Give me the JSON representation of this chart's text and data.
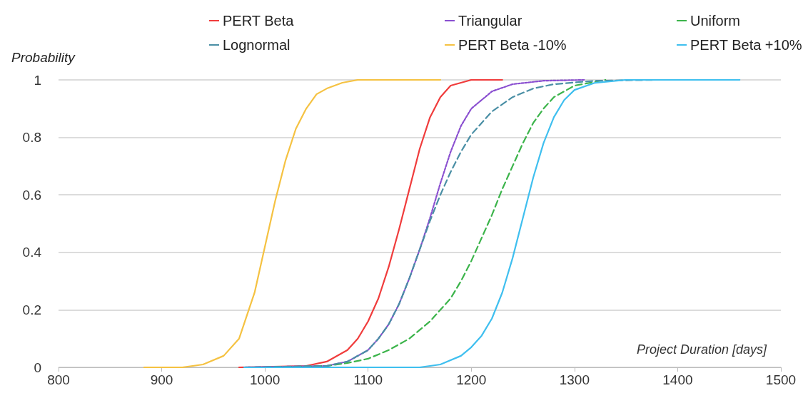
{
  "chart_data": {
    "type": "line",
    "xlabel": "Project Duration [days]",
    "ylabel": "Probability",
    "xlim": [
      800,
      1500
    ],
    "xticks": [
      800,
      900,
      1000,
      1100,
      1200,
      1300,
      1400,
      1500
    ],
    "ylim": [
      0,
      1
    ],
    "yticks": [
      0,
      0.2,
      0.4,
      0.6,
      0.8,
      1
    ],
    "grid": "y",
    "legend": "top",
    "marker": "none",
    "series": [
      {
        "name": "PERT Beta",
        "color": "#f03c3c",
        "line_style": "solid",
        "x": [
          975,
          1040,
          1060,
          1080,
          1090,
          1100,
          1110,
          1120,
          1130,
          1140,
          1150,
          1160,
          1170,
          1180,
          1200,
          1230
        ],
        "values": [
          0,
          0.005,
          0.02,
          0.06,
          0.1,
          0.16,
          0.24,
          0.35,
          0.48,
          0.62,
          0.76,
          0.87,
          0.94,
          0.98,
          1,
          1
        ]
      },
      {
        "name": "Triangular",
        "color": "#8a4fd0",
        "line_style": "dotted",
        "x": [
          980,
          1060,
          1080,
          1100,
          1110,
          1120,
          1130,
          1140,
          1150,
          1160,
          1170,
          1180,
          1190,
          1200,
          1220,
          1240,
          1270,
          1310
        ],
        "values": [
          0,
          0.005,
          0.02,
          0.06,
          0.1,
          0.15,
          0.22,
          0.31,
          0.41,
          0.52,
          0.64,
          0.75,
          0.84,
          0.9,
          0.96,
          0.985,
          0.997,
          1
        ]
      },
      {
        "name": "Uniform",
        "color": "#3cb44b",
        "line_style": "dashed",
        "x": [
          1000,
          1060,
          1080,
          1100,
          1120,
          1140,
          1160,
          1180,
          1190,
          1200,
          1210,
          1220,
          1230,
          1240,
          1250,
          1260,
          1270,
          1280,
          1300,
          1330
        ],
        "values": [
          0,
          0.005,
          0.015,
          0.03,
          0.06,
          0.1,
          0.16,
          0.24,
          0.3,
          0.37,
          0.45,
          0.53,
          0.62,
          0.7,
          0.78,
          0.85,
          0.9,
          0.94,
          0.98,
          1
        ]
      },
      {
        "name": "Lognormal",
        "color": "#4a8fa5",
        "line_style": "dashed",
        "x": [
          980,
          1060,
          1080,
          1100,
          1110,
          1120,
          1130,
          1140,
          1150,
          1160,
          1170,
          1180,
          1190,
          1200,
          1220,
          1240,
          1260,
          1280,
          1320,
          1380,
          1456
        ],
        "values": [
          0,
          0.005,
          0.02,
          0.06,
          0.1,
          0.15,
          0.22,
          0.31,
          0.41,
          0.51,
          0.6,
          0.68,
          0.75,
          0.81,
          0.89,
          0.94,
          0.97,
          0.985,
          0.997,
          1,
          1
        ]
      },
      {
        "name": "PERT Beta -10%",
        "color": "#f5c242",
        "line_style": "solid",
        "x": [
          883,
          920,
          940,
          960,
          975,
          990,
          1000,
          1010,
          1020,
          1030,
          1040,
          1050,
          1060,
          1075,
          1090,
          1110,
          1170
        ],
        "values": [
          0,
          0,
          0.01,
          0.04,
          0.1,
          0.26,
          0.42,
          0.58,
          0.72,
          0.83,
          0.9,
          0.95,
          0.97,
          0.99,
          1,
          1,
          1
        ]
      },
      {
        "name": "PERT Beta +10%",
        "color": "#3fbfef",
        "line_style": "solid",
        "x": [
          980,
          1150,
          1170,
          1190,
          1200,
          1210,
          1220,
          1230,
          1240,
          1250,
          1260,
          1270,
          1280,
          1290,
          1300,
          1320,
          1350,
          1460
        ],
        "values": [
          0,
          0,
          0.01,
          0.04,
          0.07,
          0.11,
          0.17,
          0.26,
          0.38,
          0.52,
          0.66,
          0.78,
          0.87,
          0.93,
          0.965,
          0.99,
          1,
          1
        ]
      }
    ]
  }
}
